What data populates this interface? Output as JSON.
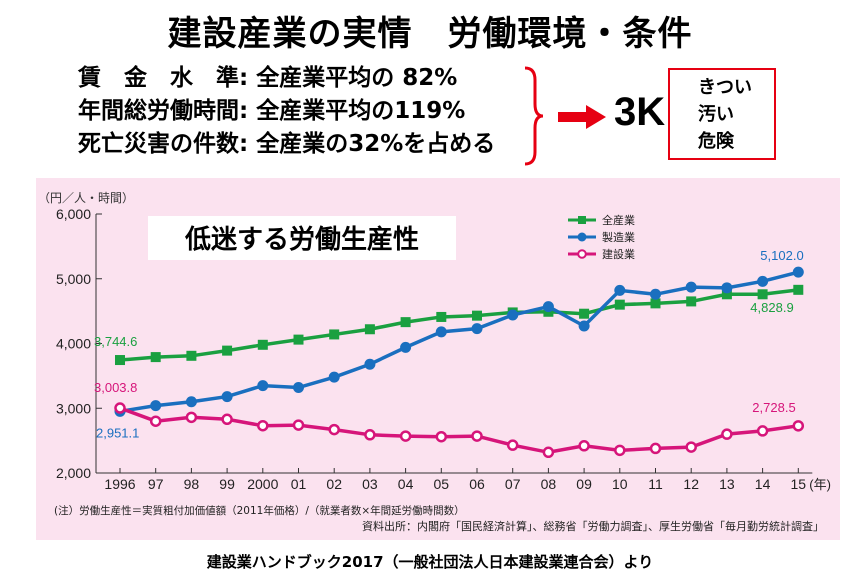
{
  "header": {
    "title": "建設産業の実情　労働環境・条件"
  },
  "facts": [
    {
      "label": "賃　金　水　準",
      "value": "全産業平均の 82%"
    },
    {
      "label": "年間総労働時間",
      "value": "全産業平均の119%"
    },
    {
      "label": "死亡災害の件数",
      "value": "全産業の32%を占める"
    }
  ],
  "three_k": {
    "label": "3K",
    "items": [
      "きつい",
      "汚い",
      "危険"
    ]
  },
  "colors": {
    "accent_red": "#e60012",
    "panel_bg": "#fbe2ef",
    "all": "#1aa040",
    "mfg": "#1a6fbf",
    "con": "#d6157a"
  },
  "footer": {
    "source": "建設業ハンドブック2017（一般社団法人日本建設業連合会）より"
  },
  "chart_data": {
    "type": "line",
    "title": "低迷する労働生産性",
    "ylabel": "（円／人・時間）",
    "xlabel_unit": "(年)",
    "ylim": [
      2000,
      6000
    ],
    "yticks": [
      "2,000",
      "3,000",
      "4,000",
      "5,000",
      "6,000"
    ],
    "x_labels": [
      "1996",
      "97",
      "98",
      "99",
      "2000",
      "01",
      "02",
      "03",
      "04",
      "05",
      "06",
      "07",
      "08",
      "09",
      "10",
      "11",
      "12",
      "13",
      "14",
      "15"
    ],
    "grid": false,
    "legend_position": "top-right",
    "series": [
      {
        "name": "全産業",
        "marker": "square",
        "values": [
          3744.6,
          3790,
          3810,
          3890,
          3980,
          4060,
          4140,
          4220,
          4330,
          4410,
          4430,
          4480,
          4490,
          4460,
          4600,
          4620,
          4650,
          4760,
          4760,
          4828.9
        ]
      },
      {
        "name": "製造業",
        "marker": "circle",
        "values": [
          2951.1,
          3040,
          3100,
          3180,
          3350,
          3320,
          3480,
          3680,
          3940,
          4180,
          4230,
          4440,
          4570,
          4270,
          4820,
          4760,
          4870,
          4860,
          4960,
          5102.0
        ]
      },
      {
        "name": "建設業",
        "marker": "open-circle",
        "values": [
          3003.8,
          2800,
          2860,
          2830,
          2730,
          2740,
          2670,
          2590,
          2570,
          2560,
          2570,
          2430,
          2320,
          2420,
          2350,
          2380,
          2400,
          2600,
          2650,
          2728.5
        ]
      }
    ],
    "annotations": [
      {
        "series": 0,
        "index": 0,
        "text": "3,744.6"
      },
      {
        "series": 1,
        "index": 0,
        "text": "2,951.1"
      },
      {
        "series": 2,
        "index": 0,
        "text": "3,003.8"
      },
      {
        "series": 1,
        "index": 19,
        "text": "5,102.0"
      },
      {
        "series": 0,
        "index": 19,
        "text": "4,828.9"
      },
      {
        "series": 2,
        "index": 19,
        "text": "2,728.5"
      }
    ],
    "note": "(注）労働生産性＝実質粗付加価値額（2011年価格）/（就業者数×年間延労働時間数）",
    "source": "資料出所：内閣府「国民経済計算」、総務省「労働力調査」、厚生労働省「毎月勤労統計調査」"
  }
}
